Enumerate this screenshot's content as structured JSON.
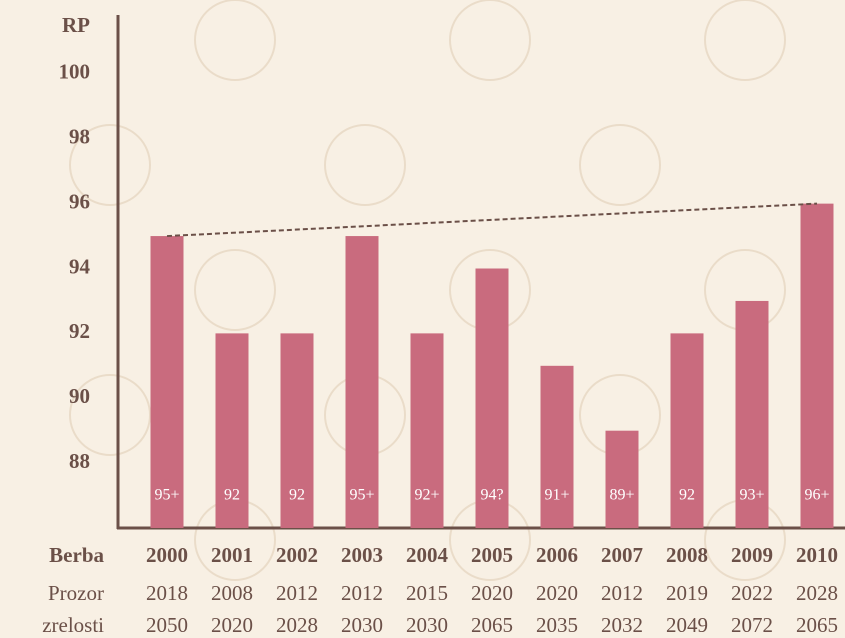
{
  "chart_data": {
    "type": "bar",
    "y_label": "RP",
    "x_label": "Berba",
    "categories": [
      "2000",
      "2001",
      "2002",
      "2003",
      "2004",
      "2005",
      "2006",
      "2007",
      "2008",
      "2009",
      "2010"
    ],
    "values": [
      95,
      92,
      92,
      95,
      92,
      94,
      91,
      89,
      92,
      93,
      96
    ],
    "value_labels": [
      "95+",
      "92",
      "92",
      "95+",
      "92+",
      "94?",
      "91+",
      "89+",
      "92",
      "93+",
      "96+"
    ],
    "color": "#c96b7e",
    "trend_values": [
      95,
      96
    ],
    "trend_color": "#6b5048",
    "ylim": [
      86,
      102
    ],
    "yticks": [
      88,
      90,
      92,
      94,
      96,
      98,
      100
    ],
    "grid": false,
    "window_label": [
      "Prozor",
      "zrelosti"
    ],
    "window_from": [
      2018,
      2008,
      2012,
      2012,
      2015,
      2020,
      2020,
      2012,
      2019,
      2022,
      2028
    ],
    "window_to": [
      2050,
      2020,
      2028,
      2030,
      2030,
      2065,
      2035,
      2032,
      2049,
      2072,
      2065
    ]
  }
}
